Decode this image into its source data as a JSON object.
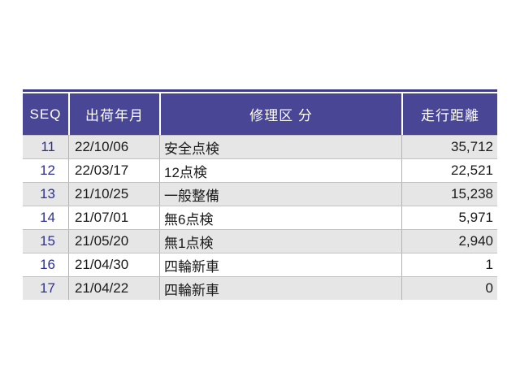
{
  "table": {
    "columns": [
      {
        "key": "seq",
        "label": "SEQ"
      },
      {
        "key": "date",
        "label": "出荷年月"
      },
      {
        "key": "category",
        "label": "修理区 分"
      },
      {
        "key": "distance",
        "label": "走行距離"
      }
    ],
    "rows": [
      {
        "seq": "11",
        "date": "22/10/06",
        "category": "安全点検",
        "distance": "35,712"
      },
      {
        "seq": "12",
        "date": "22/03/17",
        "category": "12点検",
        "distance": "22,521"
      },
      {
        "seq": "13",
        "date": "21/10/25",
        "category": "一般整備",
        "distance": "15,238"
      },
      {
        "seq": "14",
        "date": "21/07/01",
        "category": "無6点検",
        "distance": "5,971"
      },
      {
        "seq": "15",
        "date": "21/05/20",
        "category": "無1点検",
        "distance": "2,940"
      },
      {
        "seq": "16",
        "date": "21/04/30",
        "category": "四輪新車",
        "distance": "1"
      },
      {
        "seq": "17",
        "date": "21/04/22",
        "category": "四輪新車",
        "distance": "0"
      }
    ],
    "colors": {
      "header_bg": "#4a4696",
      "header_text": "#ffffff",
      "top_border": "#3f3c86",
      "stripe": "#e6e6e6",
      "seq_text": "#2d3092"
    }
  }
}
